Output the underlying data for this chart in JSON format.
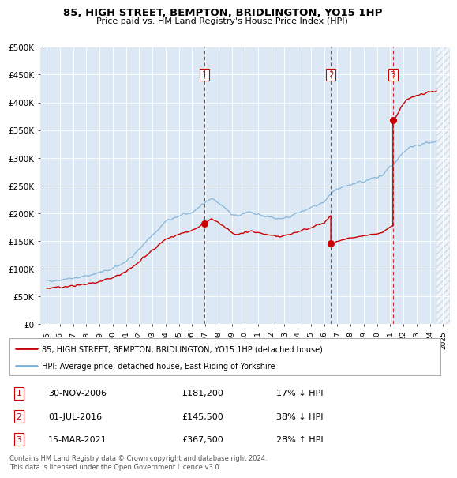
{
  "title": "85, HIGH STREET, BEMPTON, BRIDLINGTON, YO15 1HP",
  "subtitle": "Price paid vs. HM Land Registry's House Price Index (HPI)",
  "property_label": "85, HIGH STREET, BEMPTON, BRIDLINGTON, YO15 1HP (detached house)",
  "hpi_label": "HPI: Average price, detached house, East Riding of Yorkshire",
  "footer": "Contains HM Land Registry data © Crown copyright and database right 2024.\nThis data is licensed under the Open Government Licence v3.0.",
  "transactions": [
    {
      "num": "1",
      "date": "30-NOV-2006",
      "price": 181200,
      "date_val": 2006.917,
      "hpi_pct": "17% ↓ HPI"
    },
    {
      "num": "2",
      "date": "01-JUL-2016",
      "price": 145500,
      "date_val": 2016.5,
      "hpi_pct": "38% ↓ HPI"
    },
    {
      "num": "3",
      "date": "15-MAR-2021",
      "price": 367500,
      "date_val": 2021.2,
      "hpi_pct": "28% ↑ HPI"
    }
  ],
  "property_color": "#cc0000",
  "hpi_color": "#7bafd4",
  "vline_color": "#cc0000",
  "background_color": "#ffffff",
  "plot_bg_color": "#dce9f5",
  "hatch_color": "#c0c8d0",
  "ylim": [
    0,
    500000
  ],
  "xlim_start": 1994.5,
  "xlim_end": 2025.5,
  "yticks": [
    0,
    50000,
    100000,
    150000,
    200000,
    250000,
    300000,
    350000,
    400000,
    450000,
    500000
  ],
  "ytick_labels": [
    "£0",
    "£50K",
    "£100K",
    "£150K",
    "£200K",
    "£250K",
    "£300K",
    "£350K",
    "£400K",
    "£450K",
    "£500K"
  ],
  "xtick_years": [
    1995,
    1996,
    1997,
    1998,
    1999,
    2000,
    2001,
    2002,
    2003,
    2004,
    2005,
    2006,
    2007,
    2008,
    2009,
    2010,
    2011,
    2012,
    2013,
    2014,
    2015,
    2016,
    2017,
    2018,
    2019,
    2020,
    2021,
    2022,
    2023,
    2024,
    2025
  ]
}
